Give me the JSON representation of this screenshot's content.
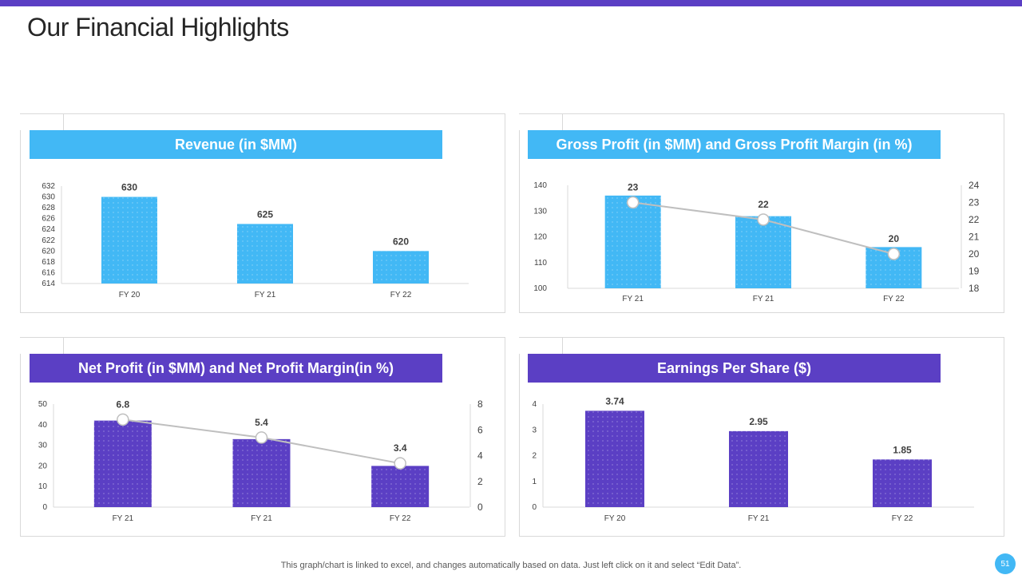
{
  "page": {
    "title": "Our Financial Highlights",
    "footer_note": "This graph/chart is linked to excel,  and changes automatically based on data. Just left click on it and select “Edit Data”.",
    "page_number": "51"
  },
  "colors": {
    "accent_purple": "#5b3fc4",
    "accent_blue": "#42b8f5",
    "line_gray": "#bfbfbf"
  },
  "chart_data": [
    {
      "type": "bar",
      "title": "Revenue (in $MM)",
      "categories": [
        "FY 20",
        "FY 21",
        "FY 22"
      ],
      "values": [
        630,
        625,
        620
      ],
      "data_labels": [
        "630",
        "625",
        "620"
      ],
      "ylim": [
        614,
        632
      ],
      "yticks": [
        "632",
        "630",
        "628",
        "626",
        "624",
        "622",
        "620",
        "618",
        "616",
        "614"
      ],
      "bar_color": "#42b8f5",
      "grid": false
    },
    {
      "type": "bar",
      "title": "Gross Profit (in $MM) and Gross Profit Margin (in %)",
      "categories": [
        "FY 21",
        "FY 21",
        "FY 22"
      ],
      "series": [
        {
          "type": "bar",
          "axis": "left",
          "values": [
            136,
            128,
            116
          ]
        },
        {
          "type": "line",
          "axis": "right",
          "values": [
            23,
            22,
            20
          ],
          "data_labels": [
            "23",
            "22",
            "20"
          ]
        }
      ],
      "ylim": [
        100,
        140
      ],
      "yticks": [
        "140",
        "130",
        "120",
        "110",
        "100"
      ],
      "y2lim": [
        18,
        24
      ],
      "y2ticks": [
        "24",
        "23",
        "22",
        "21",
        "20",
        "19",
        "18"
      ],
      "bar_color": "#42b8f5",
      "grid": false
    },
    {
      "type": "bar",
      "title": "Net Profit (in $MM) and Net Profit Margin(in %)",
      "categories": [
        "FY 21",
        "FY 21",
        "FY 22"
      ],
      "series": [
        {
          "type": "bar",
          "axis": "left",
          "values": [
            42,
            33,
            20
          ]
        },
        {
          "type": "line",
          "axis": "right",
          "values": [
            6.8,
            5.4,
            3.4
          ],
          "data_labels": [
            "6.8",
            "5.4",
            "3.4"
          ]
        }
      ],
      "ylim": [
        0,
        50
      ],
      "yticks": [
        "50",
        "40",
        "30",
        "20",
        "10",
        "0"
      ],
      "y2lim": [
        0,
        8
      ],
      "y2ticks": [
        "8",
        "6",
        "4",
        "2",
        "0"
      ],
      "bar_color": "#5b3fc4",
      "grid": false
    },
    {
      "type": "bar",
      "title": "Earnings Per Share ($)",
      "categories": [
        "FY 20",
        "FY 21",
        "FY 22"
      ],
      "values": [
        3.74,
        2.95,
        1.85
      ],
      "data_labels": [
        "3.74",
        "2.95",
        "1.85"
      ],
      "ylim": [
        0,
        4
      ],
      "yticks": [
        "4",
        "3",
        "2",
        "1",
        "0"
      ],
      "bar_color": "#5b3fc4",
      "grid": false
    }
  ]
}
